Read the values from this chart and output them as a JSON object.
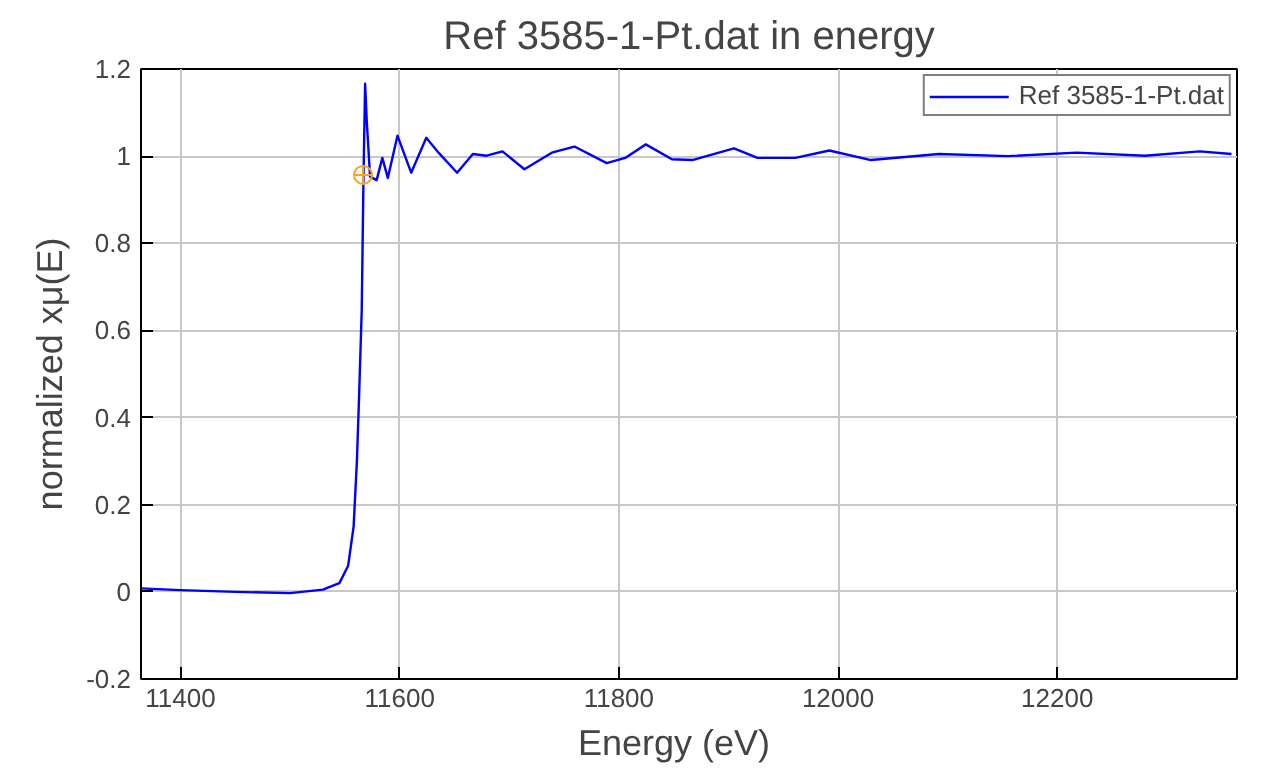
{
  "chart_data": {
    "type": "line",
    "title": "Ref 3585-1-Pt.dat in energy",
    "xlabel": "Energy    (eV)",
    "ylabel": "normalized xμ(E)",
    "xlim": [
      11364,
      12364
    ],
    "ylim": [
      -0.2,
      1.2
    ],
    "xticks": [
      11400,
      11600,
      11800,
      12000,
      12200
    ],
    "yticks": [
      -0.2,
      0,
      0.2,
      0.4,
      0.6,
      0.8,
      1,
      1.2
    ],
    "grid": true,
    "legend": "top right",
    "series": [
      {
        "name": "Ref 3585-1-Pt.dat",
        "color": "#0000ff",
        "marker": "none",
        "x": [
          11364,
          11400,
          11450,
          11500,
          11530,
          11545,
          11553,
          11558,
          11561,
          11563,
          11565.4,
          11567,
          11568.5,
          11570,
          11573,
          11579,
          11584.2,
          11589.2,
          11598,
          11610.5,
          11624.3,
          11635.5,
          11652.4,
          11666.8,
          11679.4,
          11693.8,
          11713.8,
          11738.8,
          11759.5,
          11788.9,
          11805.8,
          11824.6,
          11848.4,
          11867,
          11905,
          11926.5,
          11961,
          11992,
          12030,
          12092,
          12155,
          12217.6,
          12280,
          12330,
          12359
        ],
        "values": [
          0.008,
          0.004,
          0.0,
          -0.003,
          0.005,
          0.02,
          0.06,
          0.15,
          0.3,
          0.45,
          0.647,
          0.95,
          1.166,
          1.08,
          0.953,
          0.945,
          0.996,
          0.95,
          1.047,
          0.962,
          1.042,
          1.008,
          0.962,
          1.005,
          1.001,
          1.011,
          0.97,
          1.008,
          1.022,
          0.984,
          0.996,
          1.027,
          0.993,
          0.991,
          1.018,
          0.996,
          0.996,
          1.013,
          0.991,
          1.005,
          1.0,
          1.008,
          1.001,
          1.011,
          1.005
        ]
      },
      {
        "type": "scatter",
        "color": "#f5a623",
        "marker": "circle",
        "x": [
          11566.6
        ],
        "values": [
          0.957
        ]
      }
    ]
  }
}
